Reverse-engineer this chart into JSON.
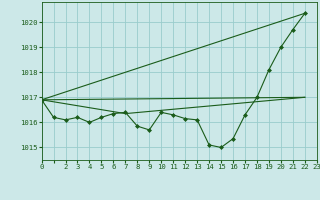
{
  "background_color": "#cce8e8",
  "grid_color": "#99cccc",
  "line_color": "#1a5c1a",
  "xlim": [
    0,
    23
  ],
  "ylim": [
    1014.5,
    1020.8
  ],
  "yticks": [
    1015,
    1016,
    1017,
    1018,
    1019,
    1020
  ],
  "xtick_labels": [
    "0",
    "",
    "2",
    "3",
    "4",
    "5",
    "6",
    "7",
    "8",
    "9",
    "10",
    "11",
    "12",
    "13",
    "14",
    "15",
    "16",
    "17",
    "18",
    "19",
    "20",
    "21",
    "22",
    "23"
  ],
  "xtick_positions": [
    0,
    1,
    2,
    3,
    4,
    5,
    6,
    7,
    8,
    9,
    10,
    11,
    12,
    13,
    14,
    15,
    16,
    17,
    18,
    19,
    20,
    21,
    22,
    23
  ],
  "series": [
    {
      "x": [
        0,
        1,
        2,
        3,
        4,
        5,
        6,
        7,
        8,
        9,
        10,
        11,
        12,
        13,
        14,
        15,
        16,
        17,
        18,
        19,
        20,
        21,
        22
      ],
      "y": [
        1016.9,
        1016.2,
        1016.1,
        1016.2,
        1016.0,
        1016.2,
        1016.35,
        1016.4,
        1015.85,
        1015.7,
        1016.4,
        1016.3,
        1016.15,
        1016.1,
        1015.1,
        1015.0,
        1015.35,
        1016.3,
        1017.0,
        1018.1,
        1019.0,
        1019.7,
        1020.35
      ],
      "marker": "D",
      "markersize": 2.0,
      "linewidth": 0.8,
      "zorder": 4
    },
    {
      "x": [
        0,
        22
      ],
      "y": [
        1016.9,
        1017.0
      ],
      "marker": null,
      "markersize": 0,
      "linewidth": 0.8,
      "zorder": 3
    },
    {
      "x": [
        0,
        22
      ],
      "y": [
        1016.9,
        1020.35
      ],
      "marker": null,
      "markersize": 0,
      "linewidth": 0.8,
      "zorder": 3
    },
    {
      "x": [
        0,
        7,
        22
      ],
      "y": [
        1016.9,
        1016.35,
        1017.0
      ],
      "marker": null,
      "markersize": 0,
      "linewidth": 0.8,
      "zorder": 3
    }
  ]
}
